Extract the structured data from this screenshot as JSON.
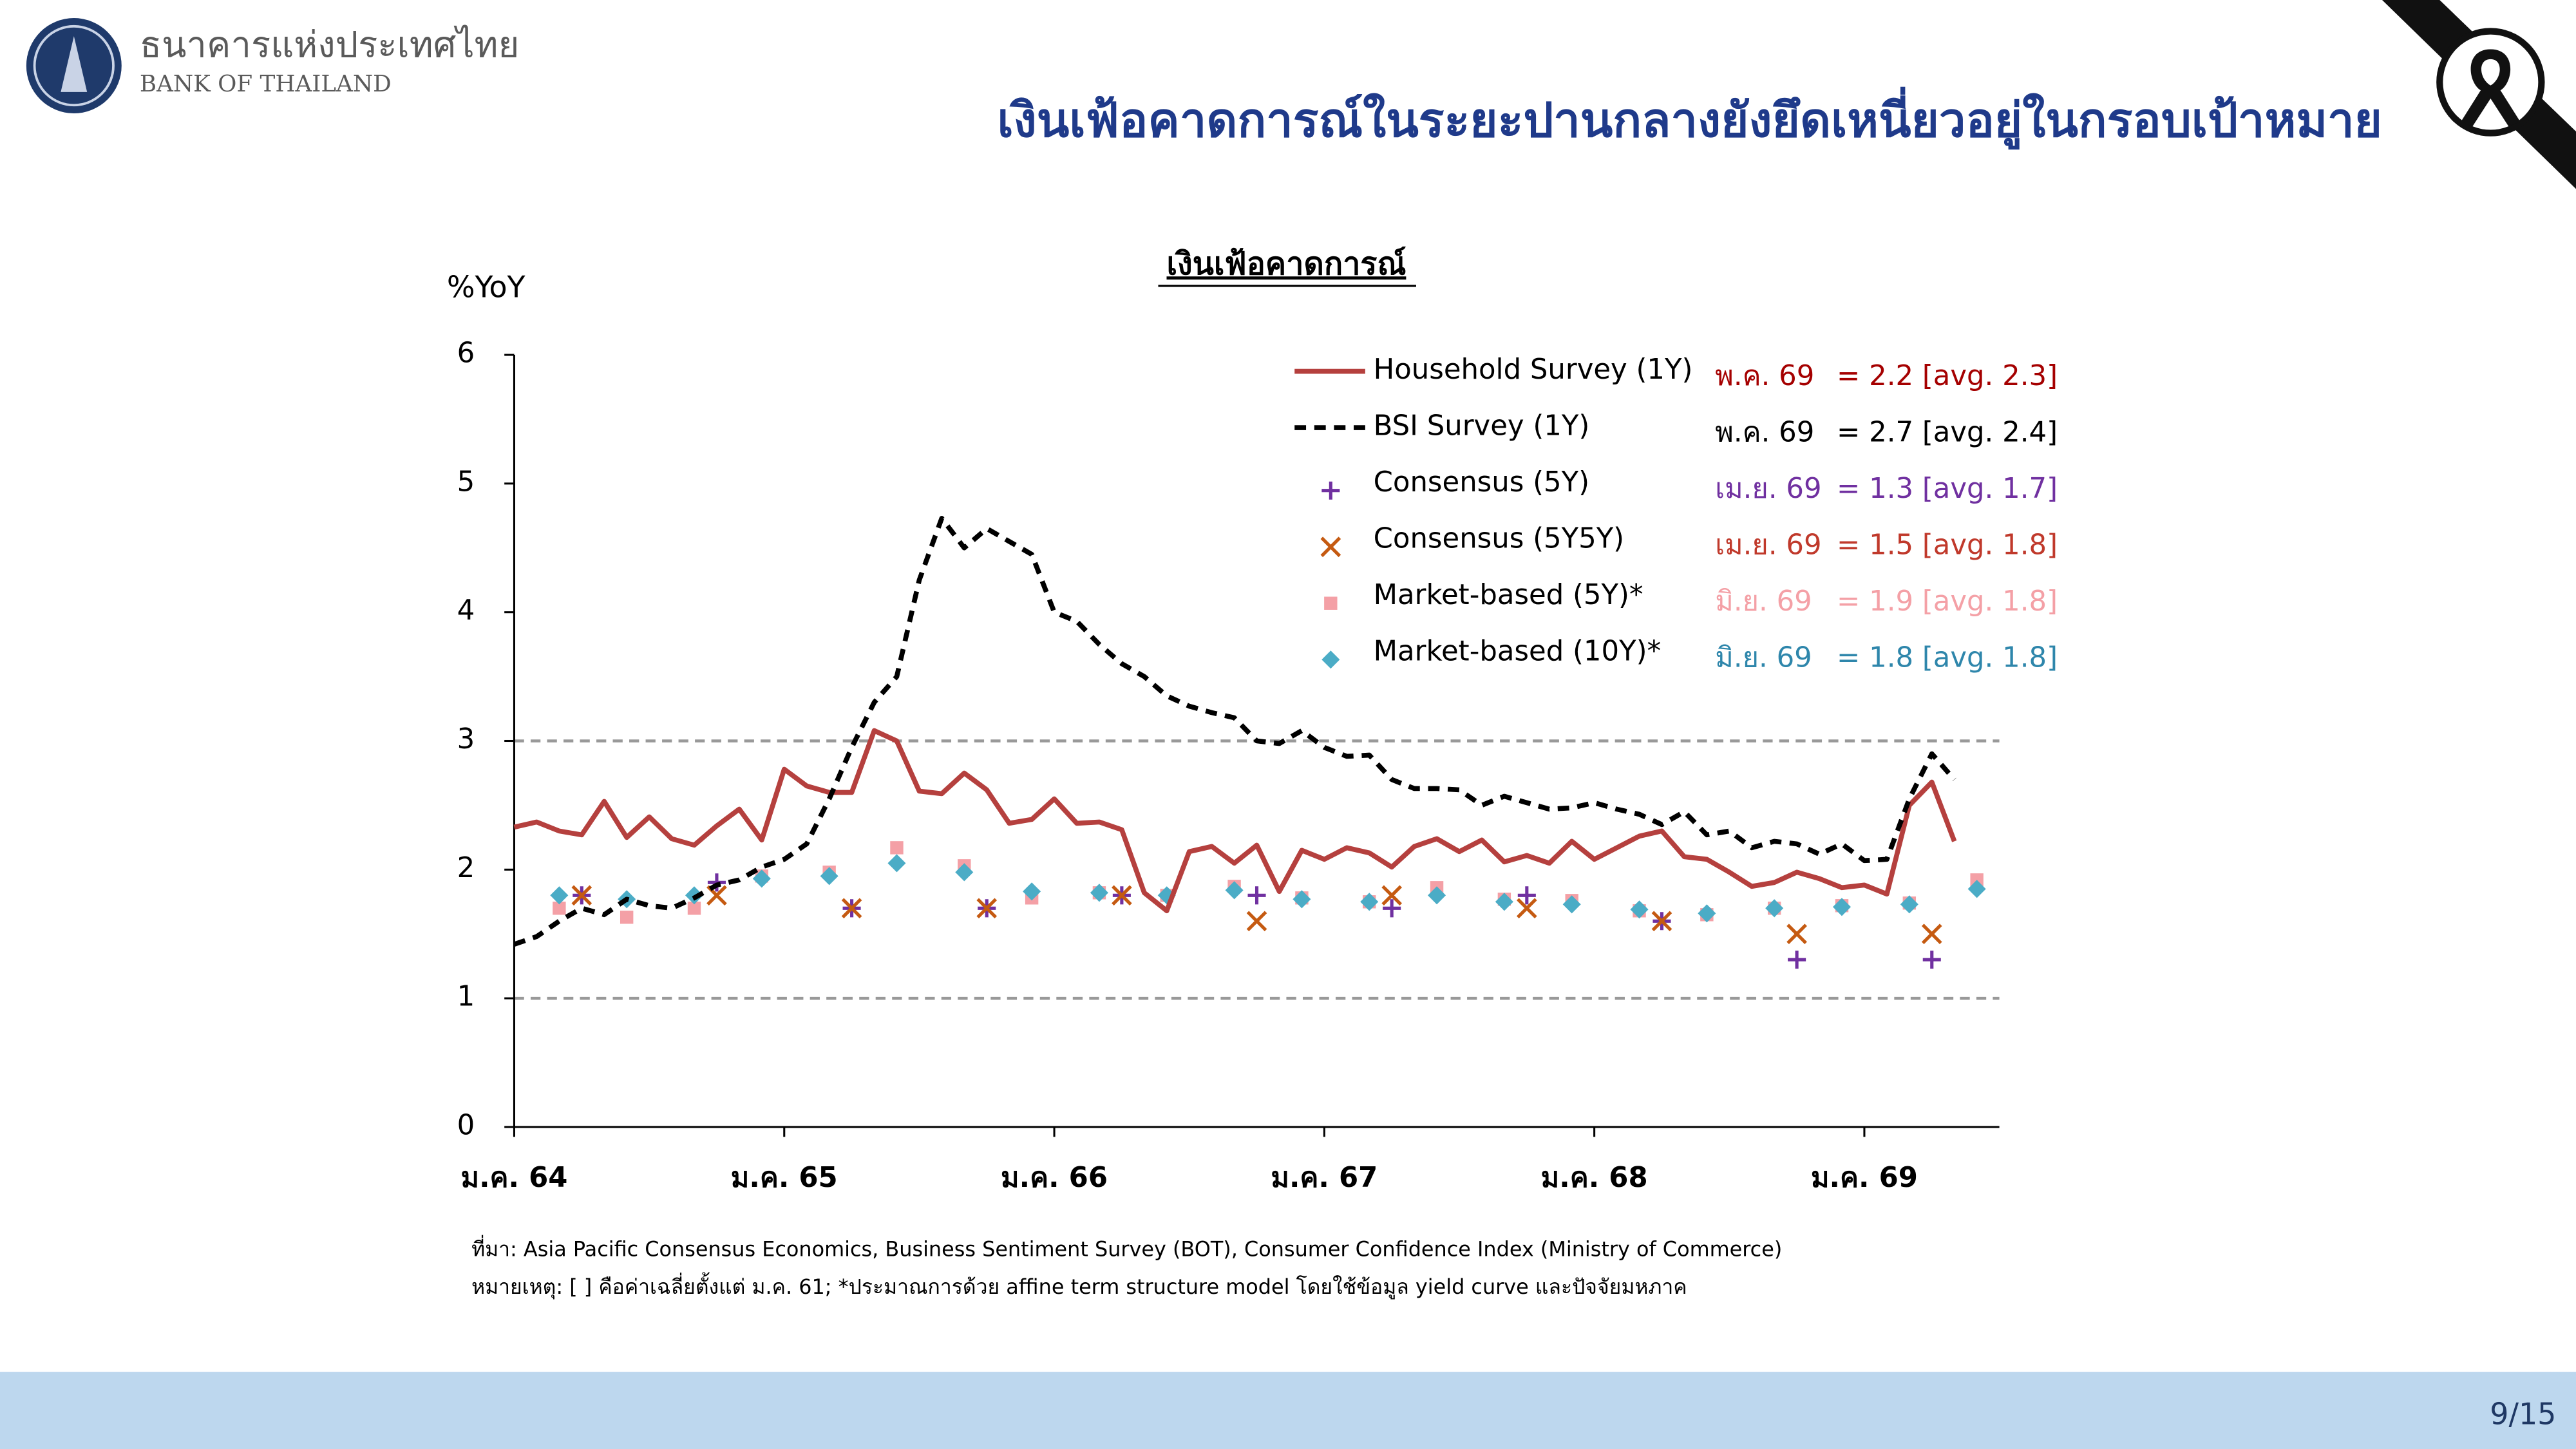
{
  "header": {
    "bank_name_th": "ธนาคารแห่งประเทศไทย",
    "bank_name_en": "BANK OF THAILAND",
    "title": "เงินเฟ้อคาดการณ์ในระยะปานกลางยังยึดเหนี่ยวอยู่ในกรอบเป้าหมาย"
  },
  "footer": {
    "source": "ที่มา: Asia Pacific Consensus Economics, Business Sentiment Survey (BOT), Consumer Confidence Index (Ministry of Commerce)",
    "note": "หมายเหตุ: [ ] คือค่าเฉลี่ยตั้งแต่ ม.ค. 61; *ประมาณการด้วย affine term structure model โดยใช้ข้อมูล yield curve และปัจจัยมหภาค",
    "page": "9/15"
  },
  "chart_data": {
    "type": "line",
    "title": "เงินเฟ้อคาดการณ์",
    "y_label": "%YoY",
    "xlim": [
      0,
      66
    ],
    "ylim": [
      0,
      6
    ],
    "xticks": [
      {
        "value": 0,
        "label": "ม.ค. 64"
      },
      {
        "value": 12,
        "label": "ม.ค. 65"
      },
      {
        "value": 24,
        "label": "ม.ค. 66"
      },
      {
        "value": 36,
        "label": "ม.ค. 67"
      },
      {
        "value": 48,
        "label": "ม.ค. 68"
      },
      {
        "value": 60,
        "label": "ม.ค. 69"
      }
    ],
    "yticks": [
      0,
      1,
      2,
      3,
      4,
      5,
      6
    ],
    "ref_lines": [
      1,
      3
    ],
    "series": [
      {
        "name": "Household Survey (1Y)",
        "style": "line",
        "color": "#b5403e",
        "note_date": "พ.ค. 69",
        "note_text": "= 2.2 [avg. 2.3]",
        "note_color": "#a50000",
        "x": [
          0,
          1,
          2,
          3,
          4,
          5,
          6,
          7,
          8,
          9,
          10,
          11,
          12,
          13,
          14,
          15,
          16,
          17,
          18,
          19,
          20,
          21,
          22,
          23,
          24,
          25,
          26,
          27,
          28,
          29,
          30,
          31,
          32,
          33,
          34,
          35,
          36,
          37,
          38,
          39,
          40,
          41,
          42,
          43,
          44,
          45,
          46,
          47,
          48,
          49,
          50,
          51,
          52,
          53,
          54,
          55,
          56,
          57,
          58,
          59,
          60,
          61,
          62,
          63,
          64
        ],
        "values": [
          2.33,
          2.37,
          2.3,
          2.27,
          2.53,
          2.25,
          2.41,
          2.24,
          2.19,
          2.34,
          2.47,
          2.23,
          2.78,
          2.65,
          2.6,
          2.6,
          3.08,
          3.0,
          2.61,
          2.59,
          2.75,
          2.62,
          2.36,
          2.39,
          2.55,
          2.36,
          2.37,
          2.31,
          1.82,
          1.68,
          2.14,
          2.18,
          2.05,
          2.19,
          1.83,
          2.15,
          2.08,
          2.17,
          2.13,
          2.02,
          2.18,
          2.24,
          2.14,
          2.23,
          2.06,
          2.11,
          2.05,
          2.22,
          2.08,
          2.17,
          2.26,
          2.3,
          2.1,
          2.08,
          1.98,
          1.87,
          1.9,
          1.98,
          1.93,
          1.86,
          1.88,
          1.81,
          2.5,
          2.68,
          2.22
        ]
      },
      {
        "name": "BSI Survey (1Y)",
        "style": "dashed",
        "color": "#000000",
        "note_date": "พ.ค. 69",
        "note_text": "= 2.7 [avg. 2.4]",
        "note_color": "#000000",
        "x": [
          0,
          1,
          2,
          3,
          4,
          5,
          6,
          7,
          8,
          9,
          10,
          11,
          12,
          13,
          14,
          15,
          16,
          17,
          18,
          19,
          20,
          21,
          22,
          23,
          24,
          25,
          26,
          27,
          28,
          29,
          30,
          31,
          32,
          33,
          34,
          35,
          36,
          37,
          38,
          39,
          40,
          41,
          42,
          43,
          44,
          45,
          46,
          47,
          48,
          49,
          50,
          51,
          52,
          53,
          54,
          55,
          56,
          57,
          58,
          59,
          60,
          61,
          62,
          63,
          64
        ],
        "values": [
          1.42,
          1.48,
          1.6,
          1.7,
          1.65,
          1.77,
          1.72,
          1.7,
          1.78,
          1.88,
          1.92,
          2.02,
          2.08,
          2.2,
          2.55,
          2.95,
          3.3,
          3.5,
          4.25,
          4.73,
          4.5,
          4.65,
          4.55,
          4.45,
          4.0,
          3.93,
          3.75,
          3.6,
          3.5,
          3.35,
          3.27,
          3.22,
          3.18,
          3.0,
          2.98,
          3.08,
          2.95,
          2.88,
          2.89,
          2.7,
          2.63,
          2.63,
          2.62,
          2.5,
          2.57,
          2.52,
          2.47,
          2.48,
          2.52,
          2.47,
          2.43,
          2.35,
          2.45,
          2.27,
          2.3,
          2.17,
          2.22,
          2.2,
          2.12,
          2.2,
          2.07,
          2.08,
          2.55,
          2.9,
          2.7
        ]
      },
      {
        "name": "Consensus (5Y)",
        "style": "plus",
        "color": "#7030a0",
        "note_date": "เม.ย. 69",
        "note_text": "= 1.3 [avg. 1.7]",
        "note_color": "#7030a0",
        "x": [
          3,
          9,
          15,
          21,
          27,
          33,
          39,
          45,
          51,
          57,
          63
        ],
        "values": [
          1.8,
          1.9,
          1.7,
          1.7,
          1.8,
          1.8,
          1.7,
          1.8,
          1.6,
          1.3,
          1.3
        ]
      },
      {
        "name": "Consensus (5Y5Y)",
        "style": "cross",
        "color": "#c55a11",
        "note_date": "เม.ย. 69",
        "note_text": "= 1.5 [avg. 1.8]",
        "note_color": "#c0392b",
        "x": [
          3,
          9,
          15,
          21,
          27,
          33,
          39,
          45,
          51,
          57,
          63
        ],
        "values": [
          1.8,
          1.8,
          1.7,
          1.7,
          1.8,
          1.6,
          1.8,
          1.7,
          1.6,
          1.5,
          1.5
        ]
      },
      {
        "name": "Market-based (5Y)*",
        "style": "square",
        "color": "#f4a0a6",
        "note_date": "มิ.ย. 69",
        "note_text": "= 1.9 [avg. 1.8]",
        "note_color": "#f4a0a6",
        "x": [
          2,
          5,
          8,
          11,
          14,
          17,
          20,
          23,
          26,
          29,
          32,
          35,
          38,
          41,
          44,
          47,
          50,
          53,
          56,
          59,
          62,
          65
        ],
        "values": [
          1.7,
          1.63,
          1.7,
          1.95,
          1.98,
          2.17,
          2.03,
          1.78,
          1.82,
          1.8,
          1.87,
          1.78,
          1.75,
          1.86,
          1.77,
          1.76,
          1.68,
          1.65,
          1.7,
          1.72,
          1.74,
          1.92
        ]
      },
      {
        "name": "Market-based (10Y)*",
        "style": "diamond",
        "color": "#4bacc6",
        "note_date": "มิ.ย. 69",
        "note_text": "= 1.8 [avg. 1.8]",
        "note_color": "#2e86ab",
        "x": [
          2,
          5,
          8,
          11,
          14,
          17,
          20,
          23,
          26,
          29,
          32,
          35,
          38,
          41,
          44,
          47,
          50,
          53,
          56,
          59,
          62,
          65
        ],
        "values": [
          1.8,
          1.77,
          1.8,
          1.93,
          1.95,
          2.05,
          1.98,
          1.83,
          1.82,
          1.8,
          1.84,
          1.77,
          1.75,
          1.8,
          1.75,
          1.73,
          1.69,
          1.66,
          1.7,
          1.71,
          1.73,
          1.85
        ]
      }
    ]
  }
}
